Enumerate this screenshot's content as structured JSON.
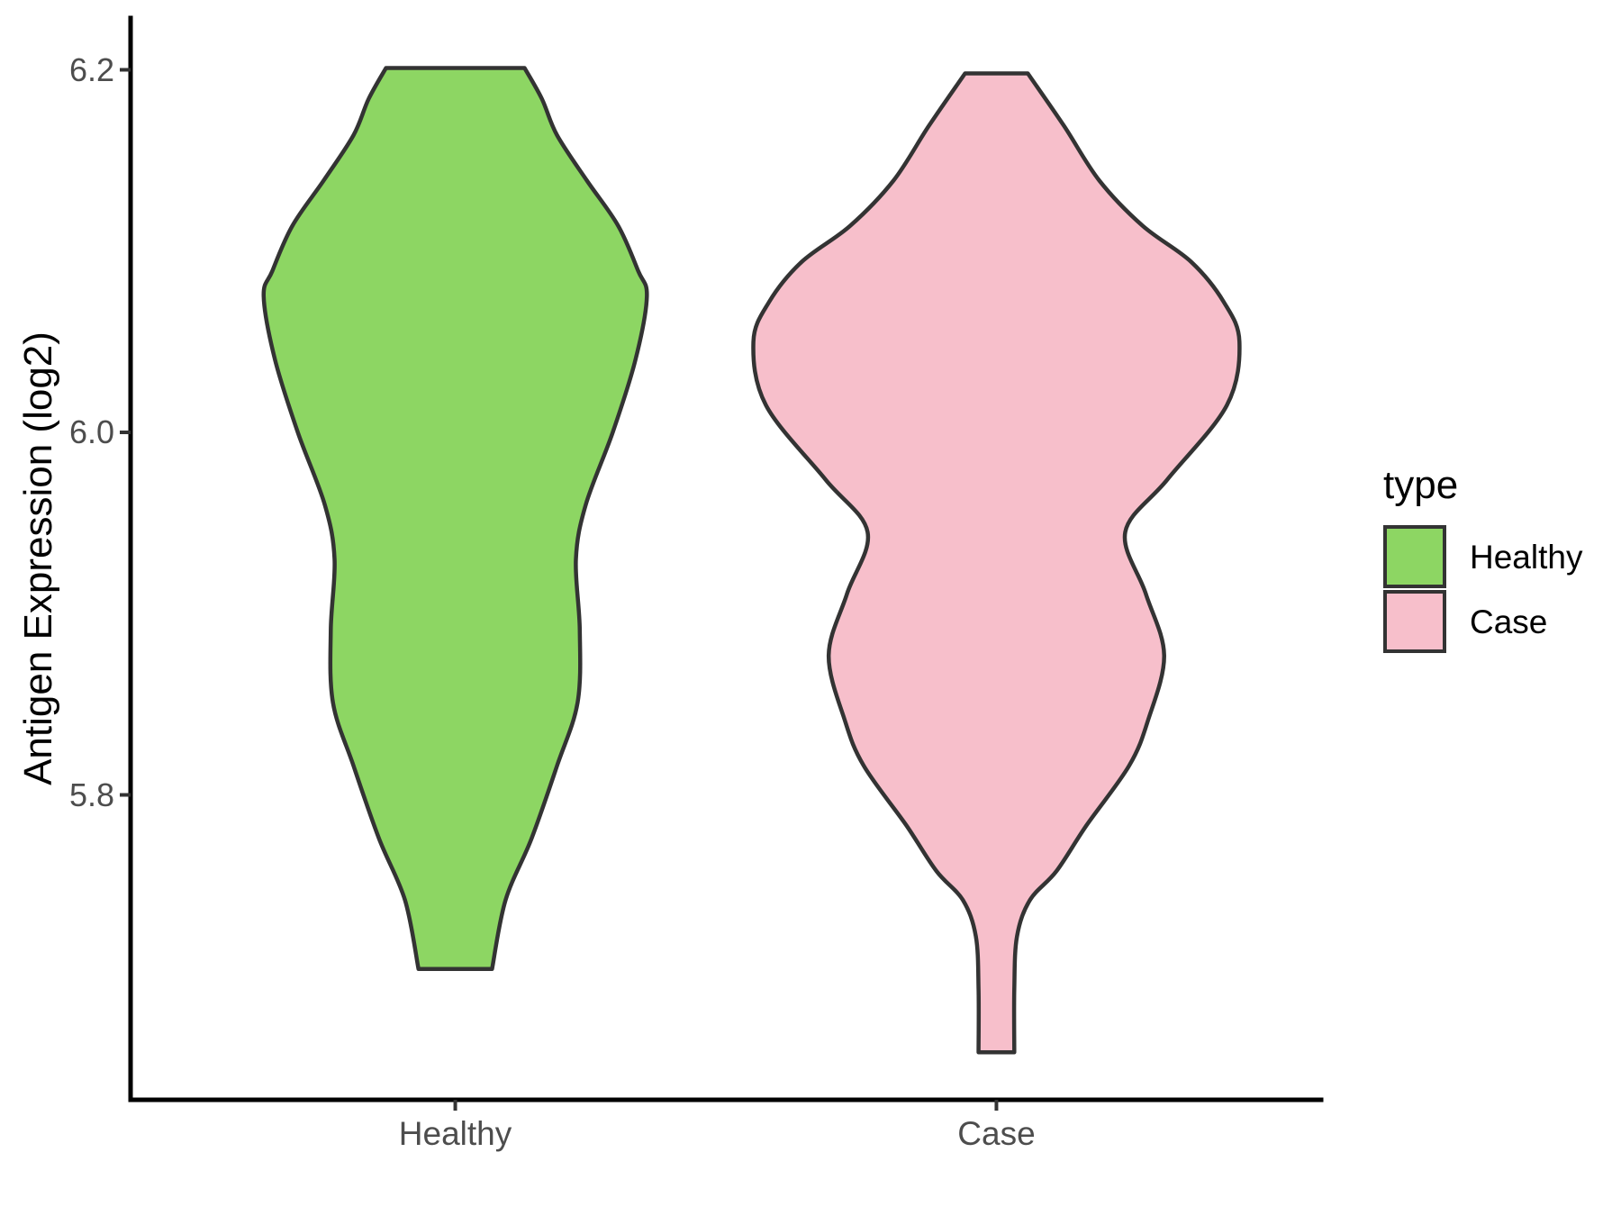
{
  "figure": {
    "background_color": "#FFFFFF",
    "y_axis": {
      "title": "Antigen Expression (log2)",
      "ticks": [
        "6.2",
        "6.0",
        "5.8"
      ],
      "tick_values": [
        6.2,
        6.0,
        5.8
      ]
    },
    "x_axis": {
      "categories": [
        "Healthy",
        "Case"
      ]
    },
    "legend": {
      "title": "type",
      "items": [
        {
          "label": "Healthy",
          "color": "#8DD663"
        },
        {
          "label": "Case",
          "color": "#F7BFCB"
        }
      ]
    },
    "colors": {
      "violin_outline": "#333333",
      "axis_line": "#000000",
      "tick_label": "#4D4D4D"
    }
  },
  "chart_data": {
    "type": "violin",
    "title": "",
    "xlabel": "",
    "ylabel": "Antigen Expression (log2)",
    "categories": [
      "Healthy",
      "Case"
    ],
    "ylim": [
      5.63,
      6.23
    ],
    "yticks": [
      5.8,
      6.0,
      6.2
    ],
    "grid": "off",
    "legend_title": "type",
    "legend_position": "right",
    "series": [
      {
        "name": "Healthy",
        "fill": "#8DD663",
        "value_range": [
          5.7,
          6.2
        ],
        "profile_v_hw": [
          [
            6.201,
            0.128
          ],
          [
            6.184,
            0.16
          ],
          [
            6.164,
            0.188
          ],
          [
            6.139,
            0.243
          ],
          [
            6.114,
            0.301
          ],
          [
            6.089,
            0.338
          ],
          [
            6.075,
            0.354
          ],
          [
            6.04,
            0.333
          ],
          [
            6.0,
            0.291
          ],
          [
            5.96,
            0.241
          ],
          [
            5.93,
            0.223
          ],
          [
            5.891,
            0.23
          ],
          [
            5.851,
            0.226
          ],
          [
            5.816,
            0.188
          ],
          [
            5.776,
            0.141
          ],
          [
            5.742,
            0.093
          ],
          [
            5.704,
            0.068
          ]
        ]
      },
      {
        "name": "Case",
        "fill": "#F7BFCB",
        "value_range": [
          5.66,
          6.2
        ],
        "profile_v_hw": [
          [
            6.198,
            0.058
          ],
          [
            6.169,
            0.125
          ],
          [
            6.139,
            0.19
          ],
          [
            6.114,
            0.27
          ],
          [
            6.094,
            0.36
          ],
          [
            6.072,
            0.42
          ],
          [
            6.05,
            0.449
          ],
          [
            6.015,
            0.426
          ],
          [
            5.974,
            0.316
          ],
          [
            5.945,
            0.238
          ],
          [
            5.911,
            0.276
          ],
          [
            5.877,
            0.31
          ],
          [
            5.841,
            0.28
          ],
          [
            5.816,
            0.245
          ],
          [
            5.783,
            0.166
          ],
          [
            5.758,
            0.111
          ],
          [
            5.742,
            0.062
          ],
          [
            5.722,
            0.038
          ],
          [
            5.693,
            0.033
          ],
          [
            5.658,
            0.033
          ]
        ]
      }
    ]
  }
}
